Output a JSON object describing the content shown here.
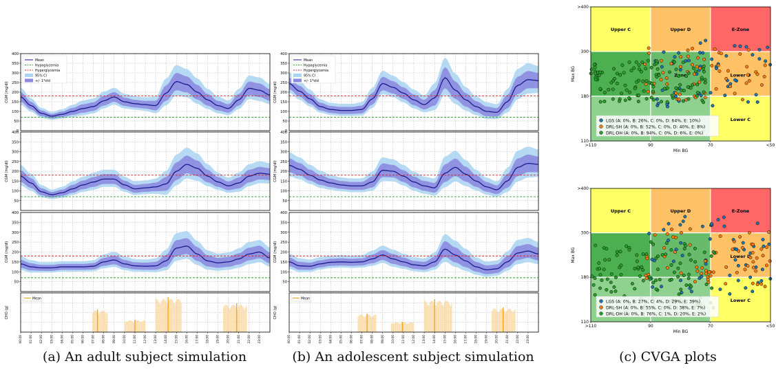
{
  "captions": {
    "a": "(a) An adult subject simulation",
    "b": "(b) An adolescent subject simulation",
    "c": "(c) CVGA plots"
  },
  "colors": {
    "mean": "#1a1a8c",
    "ci": "#aad4f2",
    "std": "#8c8ae0",
    "hypo": "#2ca02c",
    "hyper": "#d62728",
    "cho": "#f5a623",
    "cho_fill": "#fbd9a3",
    "zoneA": "#4caf50",
    "zoneB": "#8fd28f",
    "zoneLowerB": "#7cbf7c",
    "zoneC": "#ffff66",
    "zoneD": "#ffc266",
    "zoneE": "#ff6666",
    "lgs": "#1f77b4",
    "drlsh": "#ff7f0e",
    "drldh": "#2ca02c"
  },
  "chart_data": [
    {
      "type": "line",
      "panel": "a-1",
      "ylabel": "CGM (mg/dl)",
      "ylim": [
        0,
        400
      ],
      "yticks": [
        "0",
        "50",
        "100",
        "150",
        "200",
        "250",
        "300",
        "350",
        "400"
      ],
      "thresholds": {
        "hypoglycemia": 70,
        "hyperglycemia": 180
      },
      "legend": [
        "Mean",
        "Hypoglycemia",
        "Hyperglycemia",
        "95% CI",
        "+/- 1*std"
      ],
      "x_hours": [
        0,
        1,
        2,
        3,
        4,
        5,
        6,
        7,
        8,
        9,
        10,
        11,
        12,
        13,
        14,
        15,
        16,
        17,
        18,
        19,
        20,
        21,
        22,
        23,
        24
      ],
      "mean": [
        175,
        130,
        90,
        75,
        85,
        100,
        115,
        125,
        155,
        175,
        150,
        140,
        135,
        130,
        195,
        255,
        240,
        200,
        160,
        130,
        115,
        160,
        220,
        210,
        185
      ],
      "std": [
        25,
        20,
        15,
        12,
        14,
        18,
        22,
        22,
        25,
        25,
        22,
        20,
        20,
        25,
        40,
        45,
        42,
        38,
        30,
        25,
        22,
        30,
        35,
        35,
        30
      ]
    },
    {
      "type": "line",
      "panel": "a-2",
      "ylabel": "CGM (mg/dl)",
      "ylim": [
        0,
        400
      ],
      "thresholds": {
        "hypoglycemia": 70,
        "hyperglycemia": 180
      },
      "x_hours": [
        0,
        1,
        2,
        3,
        4,
        5,
        6,
        7,
        8,
        9,
        10,
        11,
        12,
        13,
        14,
        15,
        16,
        17,
        18,
        19,
        20,
        21,
        22,
        23,
        24
      ],
      "mean": [
        175,
        140,
        95,
        80,
        90,
        110,
        130,
        145,
        160,
        160,
        130,
        110,
        115,
        120,
        135,
        200,
        235,
        215,
        175,
        145,
        125,
        140,
        175,
        190,
        185
      ],
      "std": [
        30,
        25,
        18,
        14,
        16,
        20,
        22,
        25,
        25,
        25,
        22,
        20,
        20,
        22,
        35,
        45,
        45,
        40,
        32,
        25,
        22,
        28,
        32,
        32,
        30
      ]
    },
    {
      "type": "line",
      "panel": "a-3",
      "ylabel": "CGM (mg/dl)",
      "ylim": [
        0,
        400
      ],
      "thresholds": {
        "hypoglycemia": 70,
        "hyperglycemia": 180
      },
      "x_hours": [
        0,
        1,
        2,
        3,
        4,
        5,
        6,
        7,
        8,
        9,
        10,
        11,
        12,
        13,
        14,
        15,
        16,
        17,
        18,
        19,
        20,
        21,
        22,
        23,
        24
      ],
      "mean": [
        140,
        125,
        120,
        120,
        125,
        125,
        125,
        128,
        150,
        160,
        140,
        130,
        128,
        130,
        155,
        220,
        230,
        190,
        155,
        145,
        150,
        165,
        190,
        200,
        170
      ],
      "std": [
        20,
        18,
        15,
        15,
        15,
        15,
        15,
        16,
        20,
        22,
        20,
        18,
        18,
        20,
        30,
        40,
        40,
        35,
        28,
        25,
        25,
        28,
        32,
        32,
        28
      ]
    },
    {
      "type": "bar",
      "panel": "a-cho",
      "ylabel": "CHO (g)",
      "legend": [
        "Mean"
      ],
      "x_labels": [
        "00:00",
        "01:00",
        "02:00",
        "03:00",
        "04:00",
        "05:00",
        "06:00",
        "07:00",
        "08:00",
        "09:00",
        "10:00",
        "11:00",
        "12:00",
        "13:00",
        "14:00",
        "15:00",
        "16:00",
        "17:00",
        "18:00",
        "19:00",
        "20:00",
        "21:00",
        "22:00",
        "23:00"
      ],
      "meals": [
        {
          "start": 6.9,
          "end": 8.4,
          "level": 0.55,
          "mean_at": 7.4
        },
        {
          "start": 10.0,
          "end": 12.0,
          "level": 0.3,
          "mean_at": 11.0
        },
        {
          "start": 13.0,
          "end": 15.5,
          "level": 0.85,
          "mean_at": 14.2
        },
        {
          "start": 19.5,
          "end": 21.8,
          "level": 0.7,
          "mean_at": 20.8
        }
      ]
    },
    {
      "type": "line",
      "panel": "b-1",
      "ylabel": "CGM (mg/dl)",
      "ylim": [
        0,
        400
      ],
      "yticks": [
        "0",
        "50",
        "100",
        "150",
        "200",
        "250",
        "300",
        "350",
        "400"
      ],
      "thresholds": {
        "hypoglycemia": 70,
        "hyperglycemia": 180
      },
      "legend": [
        "Mean",
        "Hypoglycemia",
        "Hyperglycemia",
        "95% CI",
        "+/- 1*std"
      ],
      "x_hours": [
        0,
        1,
        2,
        3,
        4,
        5,
        6,
        7,
        8,
        9,
        10,
        11,
        12,
        13,
        14,
        15,
        16,
        17,
        18,
        19,
        20,
        21,
        22,
        23,
        24
      ],
      "mean": [
        245,
        205,
        165,
        125,
        110,
        105,
        105,
        110,
        165,
        245,
        225,
        195,
        160,
        135,
        170,
        275,
        210,
        160,
        125,
        100,
        95,
        150,
        235,
        265,
        260
      ],
      "std": [
        30,
        28,
        25,
        20,
        18,
        18,
        18,
        20,
        30,
        35,
        32,
        30,
        28,
        25,
        40,
        55,
        45,
        35,
        28,
        25,
        22,
        35,
        45,
        45,
        40
      ]
    },
    {
      "type": "line",
      "panel": "b-2",
      "ylabel": "CGM (mg/dl)",
      "ylim": [
        0,
        400
      ],
      "thresholds": {
        "hypoglycemia": 70,
        "hyperglycemia": 180
      },
      "x_hours": [
        0,
        1,
        2,
        3,
        4,
        5,
        6,
        7,
        8,
        9,
        10,
        11,
        12,
        13,
        14,
        15,
        16,
        17,
        18,
        19,
        20,
        21,
        22,
        23,
        24
      ],
      "mean": [
        230,
        210,
        180,
        155,
        140,
        130,
        125,
        125,
        145,
        205,
        200,
        175,
        145,
        125,
        115,
        190,
        220,
        185,
        150,
        120,
        105,
        150,
        220,
        240,
        235
      ],
      "std": [
        35,
        32,
        28,
        25,
        22,
        20,
        20,
        20,
        28,
        35,
        32,
        30,
        28,
        25,
        25,
        45,
        45,
        38,
        30,
        25,
        22,
        35,
        45,
        45,
        40
      ]
    },
    {
      "type": "line",
      "panel": "b-3",
      "ylabel": "CGM (mg/dl)",
      "ylim": [
        0,
        400
      ],
      "thresholds": {
        "hypoglycemia": 70,
        "hyperglycemia": 180
      },
      "x_hours": [
        0,
        1,
        2,
        3,
        4,
        5,
        6,
        7,
        8,
        9,
        10,
        11,
        12,
        13,
        14,
        15,
        16,
        17,
        18,
        19,
        20,
        21,
        22,
        23,
        24
      ],
      "mean": [
        150,
        130,
        128,
        140,
        148,
        150,
        148,
        150,
        165,
        185,
        165,
        150,
        135,
        130,
        150,
        215,
        185,
        155,
        125,
        110,
        115,
        150,
        195,
        205,
        190
      ],
      "std": [
        22,
        20,
        18,
        18,
        18,
        18,
        18,
        18,
        22,
        25,
        25,
        22,
        20,
        20,
        25,
        40,
        38,
        32,
        25,
        22,
        22,
        28,
        35,
        35,
        32
      ]
    },
    {
      "type": "bar",
      "panel": "b-cho",
      "ylabel": "CHO (g)",
      "legend": [
        "Mean"
      ],
      "x_labels": [
        "00:00",
        "01:00",
        "02:00",
        "03:00",
        "04:00",
        "05:00",
        "06:00",
        "07:00",
        "08:00",
        "09:00",
        "10:00",
        "11:00",
        "12:00",
        "13:00",
        "14:00",
        "15:00",
        "16:00",
        "17:00",
        "18:00",
        "19:00",
        "20:00",
        "21:00",
        "22:00",
        "23:00"
      ],
      "meals": [
        {
          "start": 6.6,
          "end": 8.4,
          "level": 0.45,
          "mean_at": 7.5
        },
        {
          "start": 9.8,
          "end": 12.0,
          "level": 0.25,
          "mean_at": 10.9
        },
        {
          "start": 13.0,
          "end": 15.7,
          "level": 0.8,
          "mean_at": 14.0
        },
        {
          "start": 19.5,
          "end": 21.8,
          "level": 0.6,
          "mean_at": 20.6
        }
      ]
    },
    {
      "type": "scatter",
      "panel": "c-top",
      "xlabel": "Min BG",
      "ylabel": "Max BG",
      "xticks": [
        ">110",
        "90",
        "70",
        "<50"
      ],
      "yticks": [
        ">400",
        "300",
        "180",
        "110"
      ],
      "zone_labels": [
        "Upper C",
        "Upper D",
        "E-Zone",
        "Lower D",
        "Lower C",
        "Zone"
      ],
      "legend": [
        "LGS (A: 0%, B: 26%, C: 0%, D: 64%, E: 10%)",
        "DRL-SH (A: 0%, B: 52%, C: 0%, D: 40%, E: 8%)",
        "DRL-DH (A: 0%, B: 94%, C: 0%, D: 6%, E: 0%)"
      ],
      "series": [
        {
          "name": "LGS",
          "n": 55,
          "min_range": [
            0.35,
            1.0
          ],
          "max_range": [
            0.25,
            0.75
          ]
        },
        {
          "name": "DRL-SH",
          "n": 60,
          "min_range": [
            0.3,
            0.98
          ],
          "max_range": [
            0.3,
            0.7
          ]
        },
        {
          "name": "DRL-DH",
          "n": 120,
          "min_range": [
            0.0,
            0.65
          ],
          "max_range": [
            0.4,
            0.72
          ]
        }
      ]
    },
    {
      "type": "scatter",
      "panel": "c-bottom",
      "xlabel": "Min BG",
      "ylabel": "Max BG",
      "xticks": [
        ">110",
        "90",
        "70",
        "<50"
      ],
      "yticks": [
        ">400",
        "300",
        "180",
        "110"
      ],
      "zone_labels": [
        "Upper C",
        "Upper D",
        "E-Zone",
        "Lower D",
        "Lower C"
      ],
      "legend": [
        "LGS (A: 0%, B: 27%, C: 4%, D: 29%, E: 39%)",
        "DRL-SH (A: 0%, B: 55%, C: 0%, D: 38%, E: 7%)",
        "DRL-DH (A: 0%, B: 76%, C: 1%, D: 20%, E: 2%)"
      ],
      "series": [
        {
          "name": "LGS",
          "n": 60,
          "min_range": [
            0.3,
            1.0
          ],
          "max_range": [
            0.2,
            0.8
          ]
        },
        {
          "name": "DRL-SH",
          "n": 65,
          "min_range": [
            0.3,
            1.0
          ],
          "max_range": [
            0.3,
            0.75
          ]
        },
        {
          "name": "DRL-DH",
          "n": 110,
          "min_range": [
            0.0,
            0.7
          ],
          "max_range": [
            0.4,
            0.9
          ]
        }
      ]
    }
  ]
}
